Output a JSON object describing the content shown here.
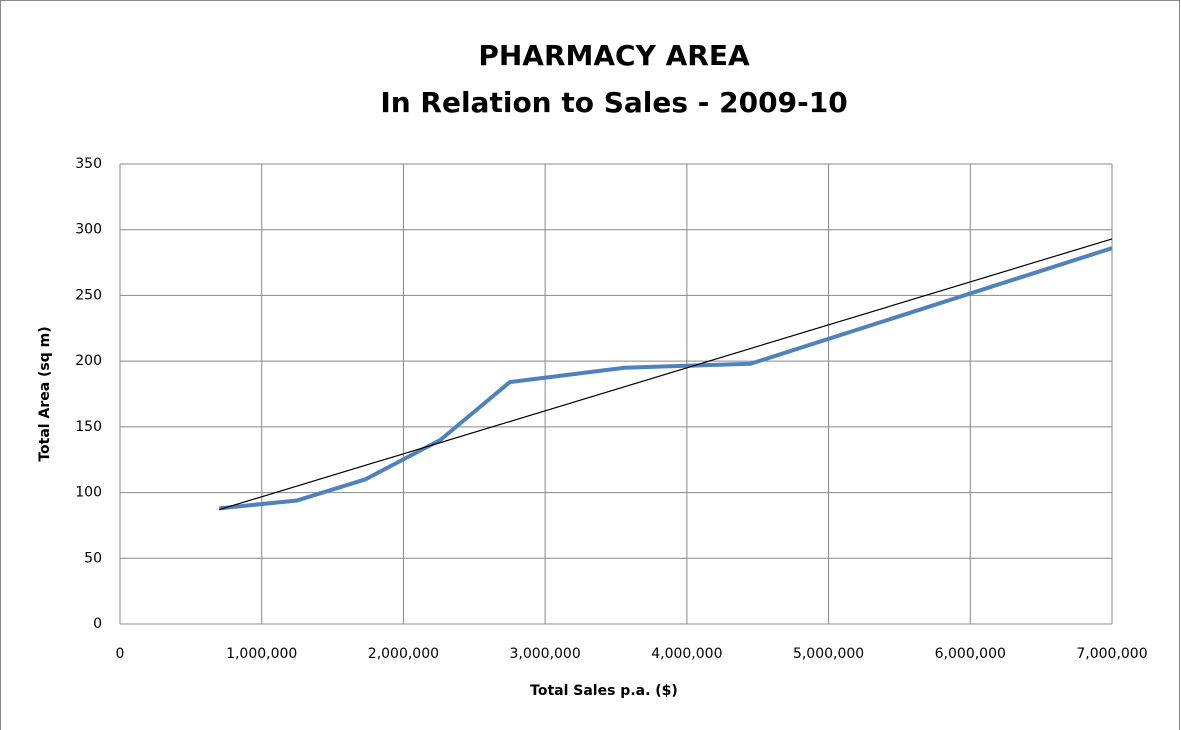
{
  "chart_data": {
    "type": "line",
    "title": "PHARMACY AREA",
    "subtitle": "In Relation to Sales - 2009-10",
    "x_label": "Total Sales p.a. ($)",
    "y_label": "Total Area (sq m)",
    "xlim": [
      0,
      7000000
    ],
    "ylim": [
      0,
      350
    ],
    "xticks": [
      0,
      {
        "value": 1000000,
        "label": "1,000,000"
      },
      {
        "value": 2000000,
        "label": "2,000,000"
      },
      {
        "value": 3000000,
        "label": "3,000,000"
      },
      {
        "value": 4000000,
        "label": "4,000,000"
      },
      {
        "value": 5000000,
        "label": "5,000,000"
      },
      {
        "value": 6000000,
        "label": "6,000,000"
      },
      {
        "value": 7000000,
        "label": "7,000,000"
      }
    ],
    "yticks": [
      0,
      50,
      100,
      150,
      200,
      250,
      300,
      350
    ],
    "grid": true,
    "series": [
      {
        "color": "#4f81bd",
        "x": [
          700000,
          1250000,
          1730000,
          2260000,
          2750000,
          3560000,
          4450000,
          7000000
        ],
        "values": [
          88,
          94,
          110,
          140,
          184,
          195,
          198,
          286
        ]
      },
      {
        "color": "#000000",
        "x": [
          700000,
          7000000
        ],
        "values": [
          87,
          293
        ]
      }
    ]
  }
}
